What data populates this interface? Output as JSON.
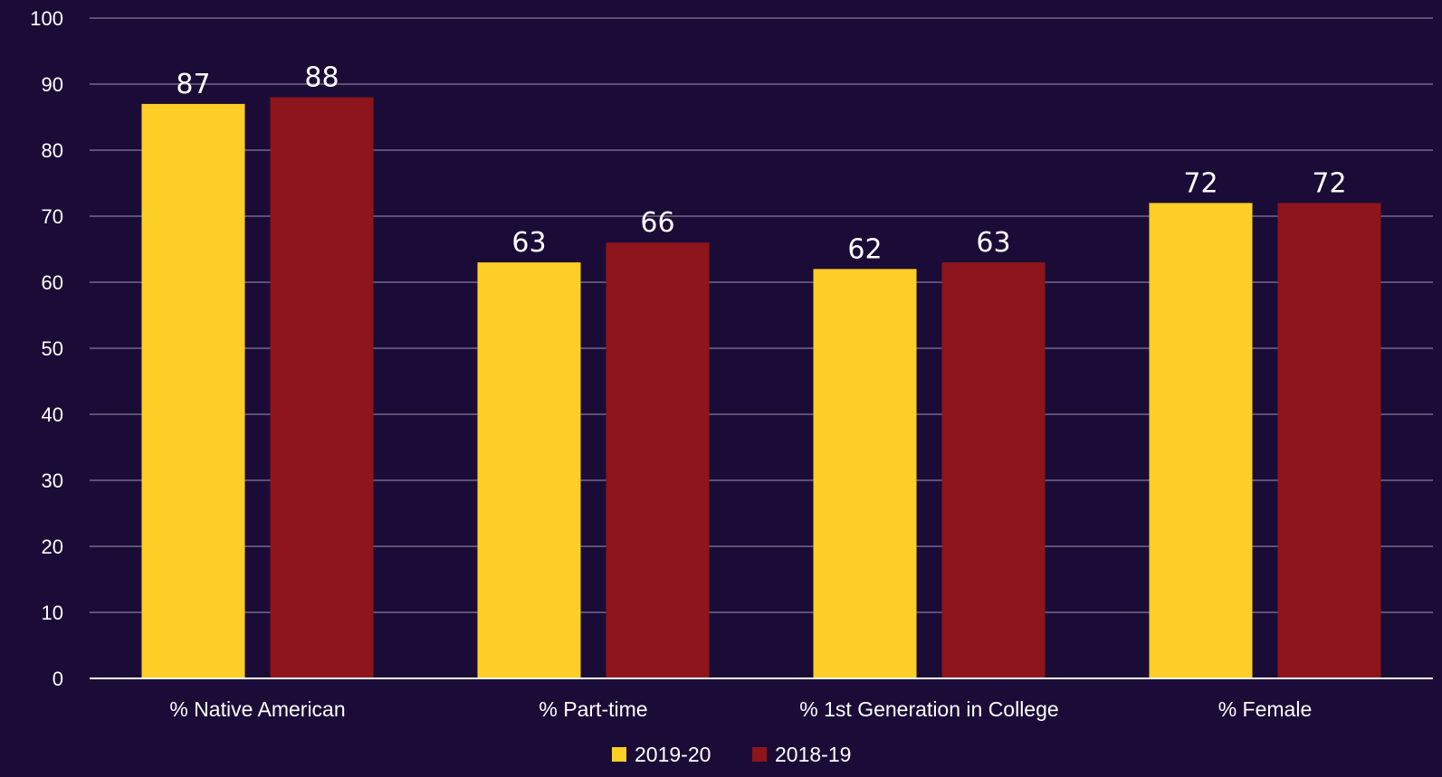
{
  "colors": {
    "background": "#1b0c37",
    "grid": "#5b5275",
    "axis": "#ffffff",
    "text": "#ffffff"
  },
  "chart_data": {
    "type": "bar",
    "title": "",
    "xlabel": "",
    "ylabel": "",
    "ylim": [
      0,
      100
    ],
    "yticks": [
      0,
      10,
      20,
      30,
      40,
      50,
      60,
      70,
      80,
      90,
      100
    ],
    "grid": true,
    "legend_position": "bottom",
    "categories": [
      "% Native American",
      "% Part-time",
      "% 1st Generation in College",
      "% Female"
    ],
    "series": [
      {
        "name": "2019-20",
        "color": "#fdcf26",
        "values": [
          87,
          63,
          62,
          72
        ]
      },
      {
        "name": "2018-19",
        "color": "#8d151b",
        "values": [
          88,
          66,
          63,
          72
        ]
      }
    ]
  }
}
